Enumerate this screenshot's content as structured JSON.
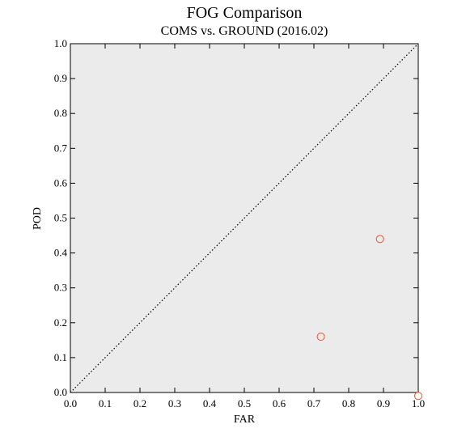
{
  "chart_data": {
    "type": "scatter",
    "title": "FOG Comparison",
    "subtitle": "COMS vs. GROUND (2016.02)",
    "xlabel": "FAR",
    "ylabel": "POD",
    "xlim": [
      0.0,
      1.0
    ],
    "ylim": [
      0.0,
      1.0
    ],
    "x_ticks": [
      "0.0",
      "0.1",
      "0.2",
      "0.3",
      "0.4",
      "0.5",
      "0.6",
      "0.7",
      "0.8",
      "0.9",
      "1.0"
    ],
    "y_ticks": [
      "0.0",
      "0.1",
      "0.2",
      "0.3",
      "0.4",
      "0.5",
      "0.6",
      "0.7",
      "0.8",
      "0.9",
      "1.0"
    ],
    "grid": false,
    "reference_line": "diagonal dotted y = x",
    "points": [
      {
        "x": 0.72,
        "y": 0.16
      },
      {
        "x": 0.89,
        "y": 0.44
      },
      {
        "x": 1.0,
        "y": -0.01
      }
    ],
    "colors": {
      "plot_background": "#ebebeb",
      "marker": "#e8603c",
      "axis": "#000000"
    }
  }
}
